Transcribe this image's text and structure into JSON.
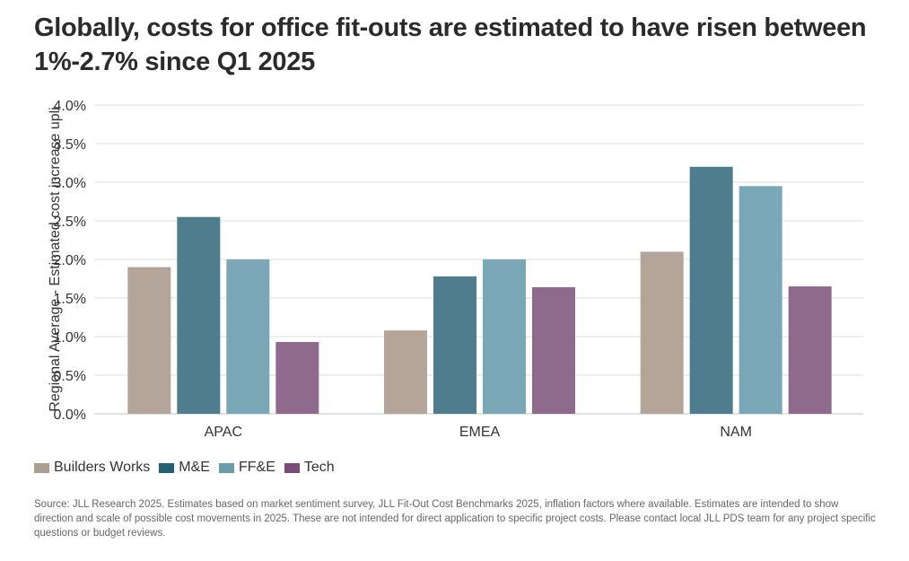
{
  "title": "Globally, costs for office fit-outs are estimated to have risen between 1%-2.7% since Q1 2025",
  "source": "Source: JLL Research 2025. Estimates based on market sentiment survey, JLL Fit-Out Cost Benchmarks 2025, inflation factors where available. Estimates are intended to show direction and scale of possible cost movements in 2025. These are not intended for direct application to specific project costs. Please contact local JLL PDS team for any project specific questions or budget reviews.",
  "chart_data": {
    "type": "bar",
    "title": "Globally, costs for office fit-outs are estimated to have risen between 1%-2.7% since Q1 2025",
    "xlabel": "",
    "ylabel": "Regional Average - Estimated cost increase upli",
    "ylim": [
      0,
      4.0
    ],
    "yticks": [
      "0.0%",
      "0.5%",
      "1.0%",
      "1.5%",
      "2.0%",
      "2.5%",
      "3.0%",
      "3.5%",
      "4.0%"
    ],
    "grid": true,
    "legend": "bottom-left",
    "categories": [
      "APAC",
      "EMEA",
      "NAM"
    ],
    "series": [
      {
        "name": "Builders Works",
        "values": [
          1.9,
          1.08,
          2.1
        ],
        "color": "#b4a59a",
        "legend_color": "#ad9e92"
      },
      {
        "name": "M&E",
        "values": [
          2.55,
          1.78,
          3.2
        ],
        "color": "#4e7d8e",
        "legend_color": "#255f73"
      },
      {
        "name": "FF&E",
        "values": [
          2.0,
          2.0,
          2.95
        ],
        "color": "#79a7b5",
        "legend_color": "#6a9aac"
      },
      {
        "name": "Tech",
        "values": [
          0.93,
          1.64,
          1.65
        ],
        "color": "#8e6a8c",
        "legend_color": "#7a4a78"
      }
    ]
  }
}
